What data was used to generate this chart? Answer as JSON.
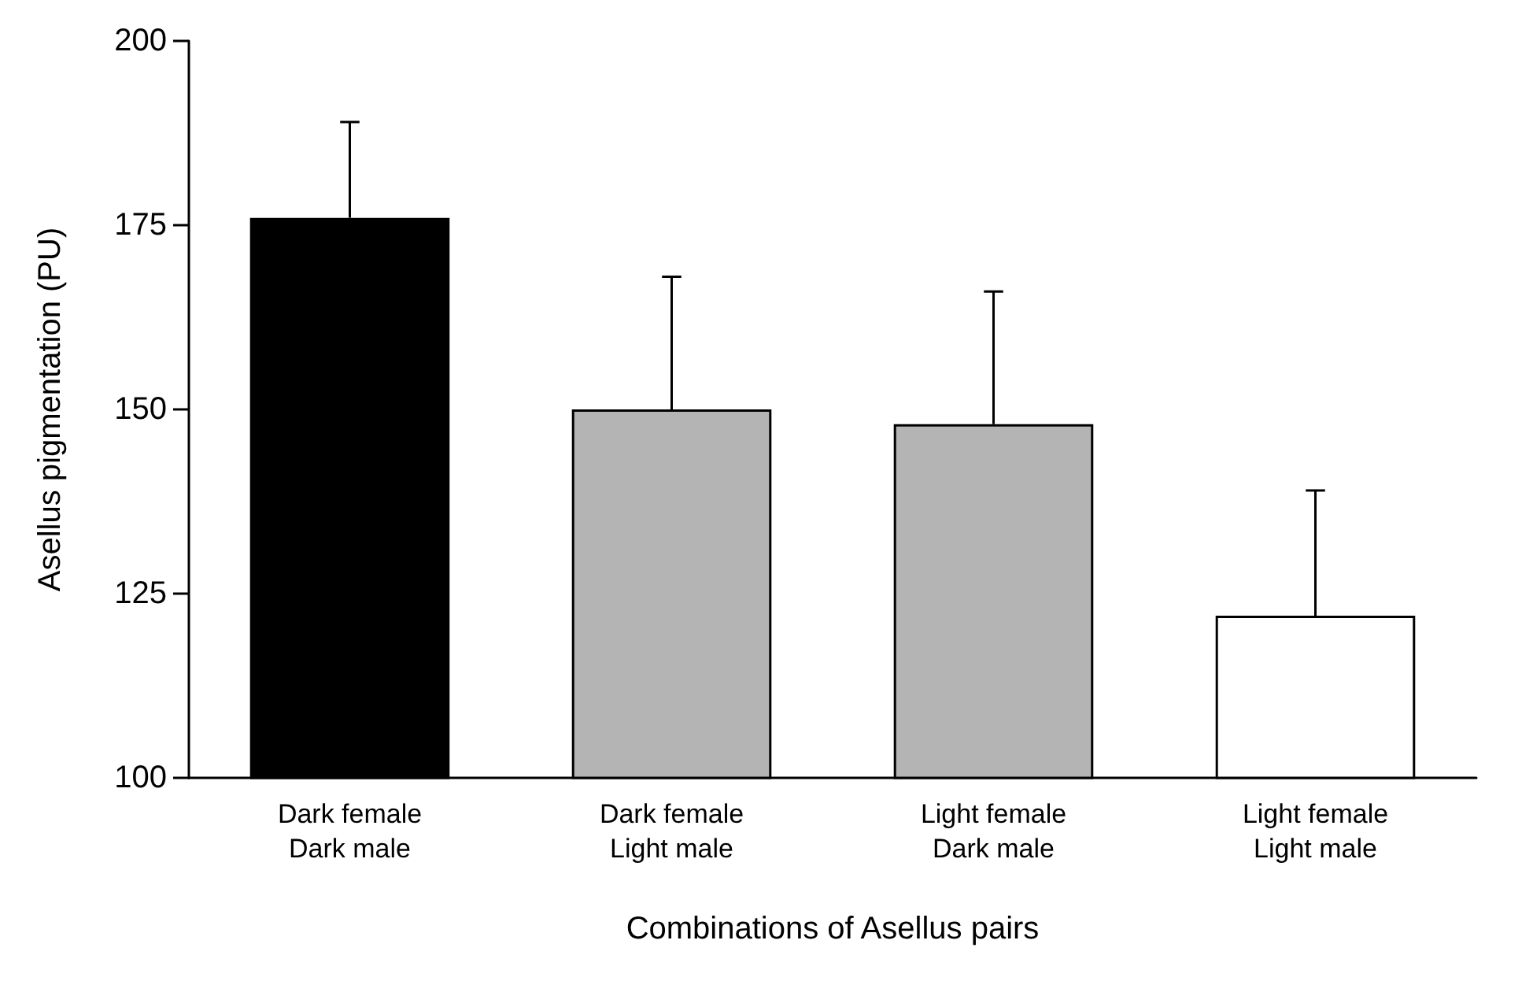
{
  "chart_data": {
    "type": "bar",
    "xlabel": "Combinations of Asellus pairs",
    "ylabel": "Asellus pigmentation (PU)",
    "categories": [
      "Dark female\nDark male",
      "Dark female\nLight male",
      "Light female\nDark male",
      "Light female\nLight male"
    ],
    "values": [
      176,
      150,
      148,
      122
    ],
    "colors": [
      "#000000",
      "#b4b4b4",
      "#b4b4b4",
      "#ffffff"
    ],
    "errors": [
      [
        176,
        189
      ],
      [
        150,
        168
      ],
      [
        148,
        166
      ],
      [
        122,
        139
      ]
    ],
    "ylim": [
      100,
      200
    ],
    "yticks": [
      100,
      125,
      150,
      175,
      200
    ],
    "grid": false
  }
}
